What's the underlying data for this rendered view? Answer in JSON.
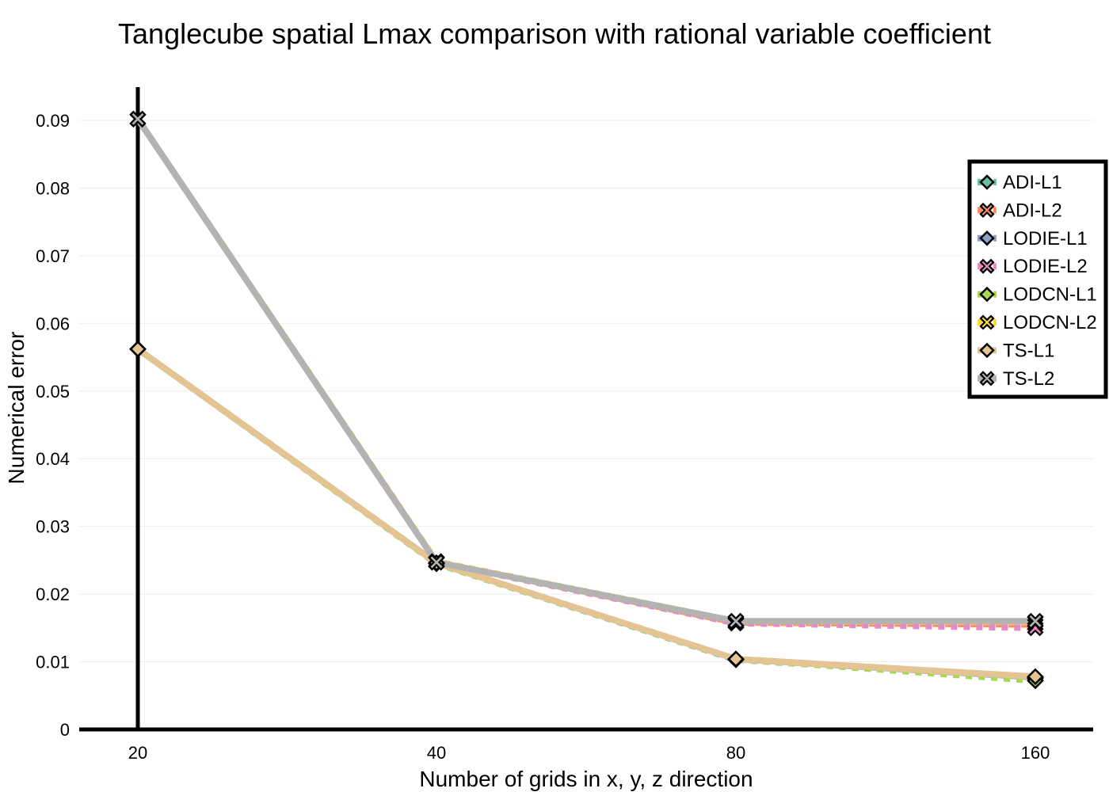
{
  "chart_data": {
    "type": "line",
    "title": "Tanglecube spatial Lmax comparison with rational variable coefficient",
    "xlabel": "Number of grids in x, y, z direction",
    "ylabel": "Numerical error",
    "x": [
      20,
      40,
      80,
      160
    ],
    "x_tick_labels": [
      "20",
      "40",
      "80",
      "160"
    ],
    "ylim": [
      0,
      0.095
    ],
    "y_ticks": [
      0,
      0.01,
      0.02,
      0.03,
      0.04,
      0.05,
      0.06,
      0.07,
      0.08,
      0.09
    ],
    "y_tick_labels": [
      "0",
      "0.01",
      "0.02",
      "0.03",
      "0.04",
      "0.05",
      "0.06",
      "0.07",
      "0.08",
      "0.09"
    ],
    "grid": true,
    "legend_position": "top-right",
    "series": [
      {
        "name": "ADI-L1",
        "values": [
          0.0562,
          0.0245,
          0.0103,
          0.0075
        ],
        "color": "#66c2a5",
        "marker": "diamond",
        "dash": "8,8"
      },
      {
        "name": "ADI-L2",
        "values": [
          0.0902,
          0.0248,
          0.0158,
          0.0155
        ],
        "color": "#fc8d62",
        "marker": "x",
        "dash": "8,8"
      },
      {
        "name": "LODIE-L1",
        "values": [
          0.0562,
          0.0246,
          0.0104,
          0.0077
        ],
        "color": "#8da0cb",
        "marker": "diamond",
        "dash": "8,8"
      },
      {
        "name": "LODIE-L2",
        "values": [
          0.0902,
          0.0247,
          0.0157,
          0.015
        ],
        "color": "#e78ac3",
        "marker": "x",
        "dash": "8,8"
      },
      {
        "name": "LODCN-L1",
        "values": [
          0.0562,
          0.0245,
          0.0104,
          0.0072
        ],
        "color": "#a6d854",
        "marker": "diamond",
        "dash": "8,8"
      },
      {
        "name": "LODCN-L2",
        "values": [
          0.0902,
          0.0248,
          0.016,
          0.0159
        ],
        "color": "#ffd92f",
        "marker": "x",
        "dash": "8,8"
      },
      {
        "name": "TS-L1",
        "values": [
          0.0562,
          0.0246,
          0.0104,
          0.0078
        ],
        "color": "#e5c494",
        "marker": "diamond",
        "dash": "none"
      },
      {
        "name": "TS-L2",
        "values": [
          0.0902,
          0.0247,
          0.016,
          0.016
        ],
        "color": "#b3b3b3",
        "marker": "x",
        "dash": "none"
      }
    ]
  }
}
